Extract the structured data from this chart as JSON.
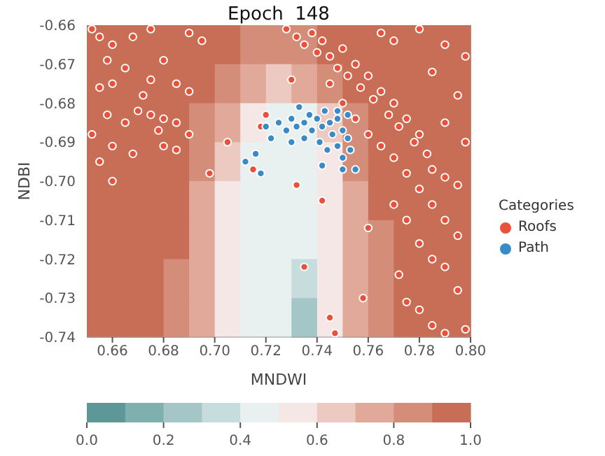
{
  "chart_data": [
    {
      "type": "heatmap",
      "categories": [
        null,
        null,
        null,
        null,
        null,
        null,
        null,
        null,
        null,
        null,
        null,
        null,
        null,
        null,
        null
      ],
      "y_categories": [
        null,
        null,
        null,
        null,
        null,
        null,
        null,
        null
      ],
      "clim": [
        0,
        1
      ],
      "cticks": [
        {
          "value": 0,
          "label": "0.0"
        },
        {
          "value": 0.2,
          "label": "0.2"
        },
        {
          "value": 0.4,
          "label": "0.4"
        },
        {
          "value": 0.6,
          "label": "0.6"
        },
        {
          "value": 0.8,
          "label": "0.8"
        },
        {
          "value": 1,
          "label": "1.0"
        }
      ],
      "cells": [
        [
          0.95,
          0.95,
          0.95,
          0.95,
          0.95,
          0.95,
          0.85,
          0.85,
          0.85,
          0.95,
          0.95,
          0.95,
          0.95,
          0.95,
          0.95
        ],
        [
          0.95,
          0.95,
          0.95,
          0.95,
          0.95,
          0.85,
          0.75,
          0.65,
          0.75,
          0.85,
          0.95,
          0.95,
          0.95,
          0.95,
          0.95
        ],
        [
          0.95,
          0.95,
          0.95,
          0.95,
          0.85,
          0.75,
          0.55,
          0.45,
          0.45,
          0.65,
          0.85,
          0.95,
          0.95,
          0.95,
          0.95
        ],
        [
          0.95,
          0.95,
          0.95,
          0.95,
          0.85,
          0.65,
          0.45,
          0.45,
          0.45,
          0.55,
          0.85,
          0.95,
          0.95,
          0.95,
          0.95
        ],
        [
          0.95,
          0.95,
          0.95,
          0.95,
          0.75,
          0.55,
          0.45,
          0.45,
          0.45,
          0.55,
          0.75,
          0.95,
          0.95,
          0.95,
          0.95
        ],
        [
          0.95,
          0.95,
          0.95,
          0.95,
          0.75,
          0.55,
          0.45,
          0.45,
          0.45,
          0.55,
          0.75,
          0.85,
          0.95,
          0.95,
          0.95
        ],
        [
          0.95,
          0.95,
          0.95,
          0.85,
          0.75,
          0.55,
          0.45,
          0.45,
          0.35,
          0.55,
          0.75,
          0.85,
          0.95,
          0.95,
          0.95
        ],
        [
          0.95,
          0.95,
          0.95,
          0.85,
          0.75,
          0.55,
          0.45,
          0.45,
          0.25,
          0.55,
          0.75,
          0.85,
          0.95,
          0.95,
          0.95
        ]
      ]
    },
    {
      "type": "scatter",
      "title": "Epoch  148",
      "xlabel": "MNDWI",
      "ylabel": "NDBI",
      "legend_title": "Categories",
      "legend": "right",
      "marker": "circle",
      "xlim": [
        0.65,
        0.8
      ],
      "ylim": [
        -0.74,
        -0.66
      ],
      "xticks": [
        {
          "value": 0.66,
          "label": "0.66"
        },
        {
          "value": 0.68,
          "label": "0.68"
        },
        {
          "value": 0.7,
          "label": "0.70"
        },
        {
          "value": 0.72,
          "label": "0.72"
        },
        {
          "value": 0.74,
          "label": "0.74"
        },
        {
          "value": 0.76,
          "label": "0.76"
        },
        {
          "value": 0.78,
          "label": "0.78"
        },
        {
          "value": 0.8,
          "label": "0.80"
        }
      ],
      "yticks": [
        {
          "value": -0.66,
          "label": "-0.66"
        },
        {
          "value": -0.67,
          "label": "-0.67"
        },
        {
          "value": -0.68,
          "label": "-0.68"
        },
        {
          "value": -0.69,
          "label": "-0.69"
        },
        {
          "value": -0.7,
          "label": "-0.70"
        },
        {
          "value": -0.71,
          "label": "-0.71"
        },
        {
          "value": -0.72,
          "label": "-0.72"
        },
        {
          "value": -0.73,
          "label": "-0.73"
        },
        {
          "value": -0.74,
          "label": "-0.74"
        }
      ],
      "series": [
        {
          "name": "Roofs",
          "color": "#e8513a",
          "x": [
            0.652,
            0.655,
            0.66,
            0.668,
            0.675,
            0.69,
            0.695,
            0.658,
            0.665,
            0.68,
            0.655,
            0.66,
            0.672,
            0.675,
            0.685,
            0.69,
            0.658,
            0.665,
            0.67,
            0.675,
            0.68,
            0.685,
            0.69,
            0.678,
            0.652,
            0.66,
            0.668,
            0.68,
            0.685,
            0.655,
            0.698,
            0.66,
            0.705,
            0.728,
            0.732,
            0.735,
            0.738,
            0.74,
            0.742,
            0.745,
            0.748,
            0.75,
            0.752,
            0.755,
            0.757,
            0.76,
            0.762,
            0.765,
            0.768,
            0.77,
            0.772,
            0.775,
            0.778,
            0.78,
            0.783,
            0.785,
            0.79,
            0.795,
            0.745,
            0.75,
            0.755,
            0.76,
            0.765,
            0.77,
            0.775,
            0.78,
            0.785,
            0.79,
            0.795,
            0.765,
            0.77,
            0.78,
            0.79,
            0.798,
            0.785,
            0.795,
            0.79,
            0.798,
            0.77,
            0.775,
            0.78,
            0.785,
            0.772,
            0.79,
            0.795,
            0.78,
            0.785,
            0.79,
            0.775,
            0.76,
            0.758,
            0.798,
            0.735,
            0.745,
            0.747,
            0.742,
            0.732,
            0.715,
            0.72,
            0.73,
            0.718
          ],
          "values": [
            -0.661,
            -0.663,
            -0.665,
            -0.663,
            -0.661,
            -0.662,
            -0.664,
            -0.669,
            -0.671,
            -0.669,
            -0.676,
            -0.675,
            -0.678,
            -0.674,
            -0.675,
            -0.677,
            -0.683,
            -0.685,
            -0.682,
            -0.683,
            -0.684,
            -0.685,
            -0.688,
            -0.687,
            -0.688,
            -0.691,
            -0.693,
            -0.691,
            -0.692,
            -0.695,
            -0.698,
            -0.7,
            -0.69,
            -0.661,
            -0.663,
            -0.665,
            -0.662,
            -0.667,
            -0.664,
            -0.668,
            -0.671,
            -0.666,
            -0.673,
            -0.67,
            -0.676,
            -0.673,
            -0.679,
            -0.677,
            -0.683,
            -0.68,
            -0.686,
            -0.684,
            -0.69,
            -0.688,
            -0.693,
            -0.697,
            -0.699,
            -0.701,
            -0.675,
            -0.68,
            -0.684,
            -0.688,
            -0.691,
            -0.694,
            -0.698,
            -0.702,
            -0.706,
            -0.71,
            -0.714,
            -0.662,
            -0.664,
            -0.661,
            -0.665,
            -0.668,
            -0.672,
            -0.678,
            -0.685,
            -0.69,
            -0.706,
            -0.71,
            -0.716,
            -0.72,
            -0.724,
            -0.722,
            -0.728,
            -0.733,
            -0.737,
            -0.739,
            -0.731,
            -0.712,
            -0.73,
            -0.738,
            -0.722,
            -0.735,
            -0.739,
            -0.705,
            -0.701,
            -0.697,
            -0.683,
            -0.674,
            -0.686
          ]
        },
        {
          "name": "Path",
          "color": "#3a8ac8",
          "x": [
            0.72,
            0.725,
            0.728,
            0.73,
            0.732,
            0.735,
            0.737,
            0.738,
            0.74,
            0.742,
            0.743,
            0.745,
            0.746,
            0.748,
            0.75,
            0.752,
            0.741,
            0.744,
            0.748,
            0.75,
            0.753,
            0.735,
            0.73,
            0.722,
            0.716,
            0.712,
            0.718,
            0.742,
            0.75,
            0.755,
            0.748,
            0.752,
            0.733
          ],
          "values": [
            -0.686,
            -0.685,
            -0.687,
            -0.684,
            -0.686,
            -0.685,
            -0.683,
            -0.687,
            -0.684,
            -0.686,
            -0.682,
            -0.685,
            -0.688,
            -0.684,
            -0.687,
            -0.689,
            -0.69,
            -0.692,
            -0.691,
            -0.694,
            -0.692,
            -0.689,
            -0.69,
            -0.689,
            -0.693,
            -0.695,
            -0.698,
            -0.696,
            -0.697,
            -0.697,
            -0.682,
            -0.683,
            -0.681
          ]
        }
      ]
    }
  ]
}
